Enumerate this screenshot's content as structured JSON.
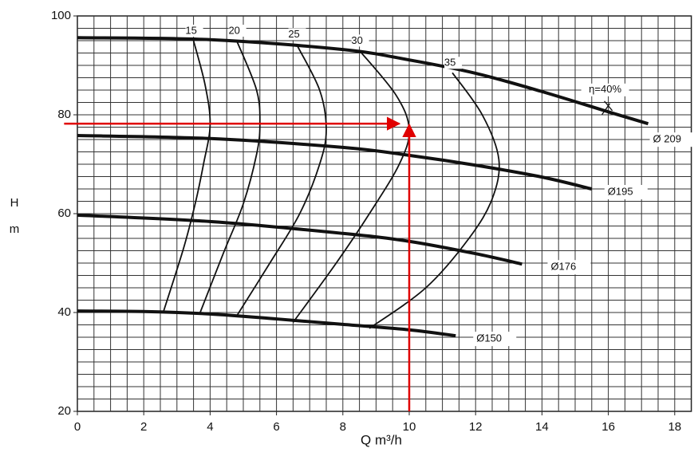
{
  "chart_data": {
    "type": "line",
    "x_label": "Q m³/h",
    "y_label": "H",
    "y_unit": "m",
    "xlim": [
      0,
      18.5
    ],
    "ylim": [
      20,
      100
    ],
    "xticks": [
      0,
      2,
      4,
      6,
      8,
      10,
      12,
      14,
      16,
      18
    ],
    "yticks": [
      20,
      40,
      60,
      80,
      100
    ],
    "grid": true,
    "grid_step": {
      "x": 0.5,
      "y": 2.5
    },
    "head_curves": [
      {
        "name": "Ø 209",
        "color": "#111111",
        "x": [
          0,
          4,
          8,
          10,
          12,
          14,
          16,
          17.2
        ],
        "values": [
          95.6,
          95.2,
          93.2,
          91.1,
          88.4,
          84.7,
          80.6,
          78.2
        ]
      },
      {
        "name": "Ø195",
        "color": "#111111",
        "x": [
          0,
          4,
          8,
          10,
          12,
          14,
          15.5
        ],
        "values": [
          75.8,
          75.2,
          73.4,
          71.8,
          69.8,
          67.4,
          65
        ]
      },
      {
        "name": "Ø176",
        "color": "#111111",
        "x": [
          0,
          4,
          8,
          10,
          12,
          13.4
        ],
        "values": [
          59.7,
          58.4,
          56,
          54.4,
          51.9,
          49.8
        ]
      },
      {
        "name": "Ø150",
        "color": "#111111",
        "x": [
          0,
          2,
          4,
          6,
          8,
          10,
          11.4
        ],
        "values": [
          40.3,
          40.2,
          39.7,
          38.7,
          37.6,
          36.5,
          35.3
        ]
      }
    ],
    "efficiency_curves": [
      {
        "name": "15",
        "color": "#111111",
        "x": [
          3.5,
          3.85,
          4.0,
          3.8,
          3.55,
          3.2,
          2.6
        ],
        "values": [
          95,
          86,
          78,
          70,
          62,
          53,
          40.3
        ]
      },
      {
        "name": "20",
        "color": "#111111",
        "x": [
          4.8,
          5.4,
          5.5,
          5.4,
          5.0,
          4.4,
          3.7
        ],
        "values": [
          95,
          85,
          78,
          72,
          62,
          52,
          40
        ]
      },
      {
        "name": "25",
        "color": "#111111",
        "x": [
          6.6,
          7.3,
          7.5,
          7.3,
          6.7,
          5.8,
          4.8
        ],
        "values": [
          94.3,
          85,
          77,
          70,
          60,
          50,
          39.3
        ]
      },
      {
        "name": "30",
        "color": "#111111",
        "x": [
          8.5,
          9.6,
          10,
          9.7,
          8.8,
          7.8,
          6.5
        ],
        "values": [
          93,
          84,
          77,
          70,
          60,
          50,
          38
        ]
      },
      {
        "name": "35",
        "color": "#111111",
        "x": [
          11.3,
          12.2,
          12.7,
          12.5,
          11.8,
          10.5,
          8.8
        ],
        "values": [
          88.5,
          80,
          71,
          63,
          55,
          45,
          36.8
        ]
      }
    ],
    "annotation": {
      "text": "η=40%",
      "x": 16,
      "y": 81
    },
    "reference_lines": [
      {
        "color": "#e00000",
        "x": [
          -0.4,
          9.7
        ],
        "values": [
          78.2,
          78.2
        ]
      },
      {
        "color": "#e00000",
        "x": [
          10,
          10
        ],
        "values": [
          20,
          78
        ]
      }
    ]
  }
}
